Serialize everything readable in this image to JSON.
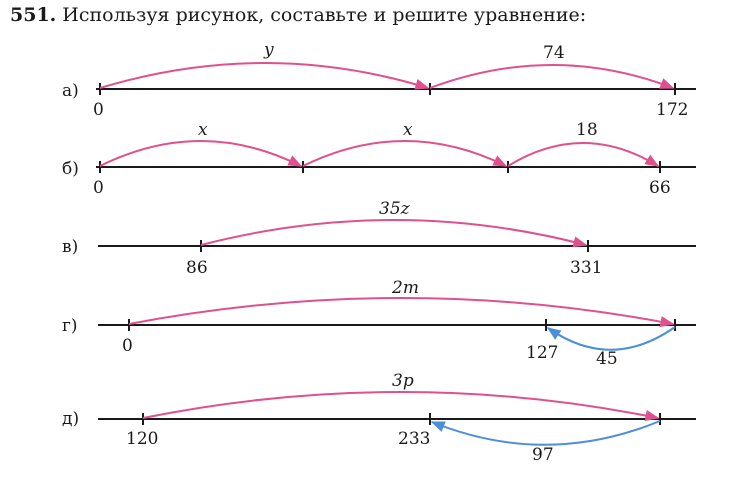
{
  "header": {
    "number": "551.",
    "text": "Используя рисунок, составьте и решите уравнение:"
  },
  "rows": [
    {
      "label": "а)",
      "ticks": [
        "0",
        "172"
      ],
      "arc_labels": [
        "y",
        "74"
      ],
      "back_arrow_label": ""
    },
    {
      "label": "б)",
      "ticks": [
        "0",
        "66"
      ],
      "arc_labels": [
        "x",
        "x",
        "18"
      ],
      "back_arrow_label": ""
    },
    {
      "label": "в)",
      "ticks": [
        "86",
        "331"
      ],
      "arc_labels": [
        "35z"
      ],
      "back_arrow_label": ""
    },
    {
      "label": "г)",
      "ticks": [
        "0",
        "127"
      ],
      "arc_labels": [
        "2m"
      ],
      "back_arrow_label": "45"
    },
    {
      "label": "д)",
      "ticks": [
        "120",
        "233"
      ],
      "arc_labels": [
        "3p"
      ],
      "back_arrow_label": "97"
    }
  ],
  "colors": {
    "forward_arc": "#e0508f",
    "back_arc": "#4a8fd8",
    "axis": "#1a1a1a"
  }
}
